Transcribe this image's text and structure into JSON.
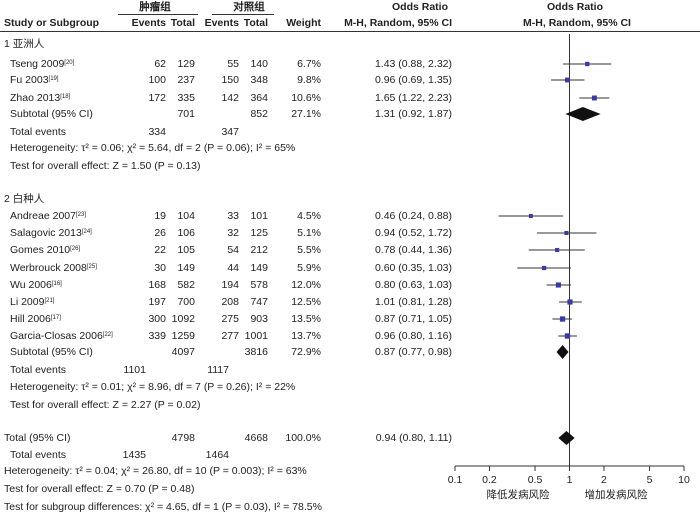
{
  "header": {
    "group1": "肿瘤组",
    "group2": "对照组",
    "or_top": "Odds Ratio",
    "or_top2": "Odds Ratio",
    "study": "Study or Subgroup",
    "events1": "Events",
    "total1": "Total",
    "events2": "Events",
    "total2": "Total",
    "weight": "Weight",
    "method": "M-H, Random, 95% CI",
    "method2": "M-H, Random, 95% CI"
  },
  "subgroups": [
    {
      "title": "1 亚洲人",
      "studies": [
        {
          "name": "Tseng 2009",
          "ref": "[20]",
          "e1": "62",
          "t1": "129",
          "e2": "55",
          "t2": "140",
          "w": "6.7%",
          "ci": "1.43 (0.88, 2.32)"
        },
        {
          "name": "Fu 2003",
          "ref": "[19]",
          "e1": "100",
          "t1": "237",
          "e2": "150",
          "t2": "348",
          "w": "9.8%",
          "ci": "0.96 (0.69, 1.35)"
        },
        {
          "name": "Zhao 2013",
          "ref": "[18]",
          "e1": "172",
          "t1": "335",
          "e2": "142",
          "t2": "364",
          "w": "10.6%",
          "ci": "1.65 (1.22, 2.23)"
        }
      ],
      "subtotal": {
        "label": "Subtotal (95% CI)",
        "t1": "701",
        "t2": "852",
        "w": "27.1%",
        "ci": "1.31 (0.92, 1.87)"
      },
      "total_events": {
        "label": "Total events",
        "e1": "334",
        "e2": "347"
      },
      "heterogeneity": "Heterogeneity: τ² = 0.06; χ² = 5.64, df = 2 (P = 0.06); I² = 65%",
      "overall": "Test for overall effect: Z = 1.50 (P = 0.13)"
    },
    {
      "title": "2 白种人",
      "studies": [
        {
          "name": "Andreae 2007",
          "ref": "[23]",
          "e1": "19",
          "t1": "104",
          "e2": "33",
          "t2": "101",
          "w": "4.5%",
          "ci": "0.46 (0.24, 0.88)"
        },
        {
          "name": "Salagovic 2013",
          "ref": "[24]",
          "e1": "26",
          "t1": "106",
          "e2": "32",
          "t2": "125",
          "w": "5.1%",
          "ci": "0.94 (0.52, 1.72)"
        },
        {
          "name": "Gomes 2010",
          "ref": "[26]",
          "e1": "22",
          "t1": "105",
          "e2": "54",
          "t2": "212",
          "w": "5.5%",
          "ci": "0.78 (0.44, 1.36)"
        },
        {
          "name": "Werbrouck 2008",
          "ref": "[25]",
          "e1": "30",
          "t1": "149",
          "e2": "44",
          "t2": "149",
          "w": "5.9%",
          "ci": "0.60 (0.35, 1.03)"
        },
        {
          "name": "Wu 2006",
          "ref": "[16]",
          "e1": "168",
          "t1": "582",
          "e2": "194",
          "t2": "578",
          "w": "12.0%",
          "ci": "0.80 (0.63, 1.03)"
        },
        {
          "name": "Li 2009",
          "ref": "[21]",
          "e1": "197",
          "t1": "700",
          "e2": "208",
          "t2": "747",
          "w": "12.5%",
          "ci": "1.01 (0.81, 1.28)"
        },
        {
          "name": "Hill 2006",
          "ref": "[17]",
          "e1": "300",
          "t1": "1092",
          "e2": "275",
          "t2": "903",
          "w": "13.5%",
          "ci": "0.87 (0.71, 1.05)"
        },
        {
          "name": "Garcia-Closas 2006",
          "ref": "[22]",
          "e1": "339",
          "t1": "1259",
          "e2": "277",
          "t2": "1001",
          "w": "13.7%",
          "ci": "0.96 (0.80, 1.16)"
        }
      ],
      "subtotal": {
        "label": "Subtotal (95% CI)",
        "t1": "4097",
        "t2": "3816",
        "w": "72.9%",
        "ci": "0.87 (0.77, 0.98)"
      },
      "total_events": {
        "label": "Total events",
        "e1": "1101",
        "e2": "1117"
      },
      "heterogeneity": "Heterogeneity: τ² = 0.01; χ² = 8.96, df = 7 (P = 0.26); I² = 22%",
      "overall": "Test for overall effect: Z = 2.27 (P = 0.02)"
    }
  ],
  "total": {
    "label": "Total (95% CI)",
    "t1": "4798",
    "t2": "4668",
    "w": "100.0%",
    "ci": "0.94 (0.80, 1.11)"
  },
  "total_events": {
    "label": "Total events",
    "e1": "1435",
    "e2": "1464"
  },
  "footer": {
    "heterogeneity": "Heterogeneity: τ² = 0.04; χ² = 26.80, df = 10 (P = 0.003); I² = 63%",
    "overall": "Test for overall effect: Z = 0.70 (P = 0.48)",
    "subgroup_diff": "Test for subgroup differences: χ² = 4.65, df = 1 (P = 0.03), I² = 78.5%"
  },
  "axis": {
    "ticks": [
      "0.1",
      "0.2",
      "0.5",
      "1",
      "2",
      "5",
      "10"
    ],
    "left_label": "降低发病风险",
    "right_label": "增加发病风险"
  },
  "colors": {
    "marker": "#3a3aa0",
    "diamond": "#111111",
    "line": "#333333"
  },
  "chart_data": {
    "type": "forest",
    "x_scale": "log",
    "xlim": [
      0.1,
      10
    ],
    "null_line": 1,
    "studies": [
      {
        "name": "Tseng 2009",
        "or": 1.43,
        "lo": 0.88,
        "hi": 2.32,
        "weight": 6.7
      },
      {
        "name": "Fu 2003",
        "or": 0.96,
        "lo": 0.69,
        "hi": 1.35,
        "weight": 9.8
      },
      {
        "name": "Zhao 2013",
        "or": 1.65,
        "lo": 1.22,
        "hi": 2.23,
        "weight": 10.6
      },
      {
        "name": "Andreae 2007",
        "or": 0.46,
        "lo": 0.24,
        "hi": 0.88,
        "weight": 4.5
      },
      {
        "name": "Salagovic 2013",
        "or": 0.94,
        "lo": 0.52,
        "hi": 1.72,
        "weight": 5.1
      },
      {
        "name": "Gomes 2010",
        "or": 0.78,
        "lo": 0.44,
        "hi": 1.36,
        "weight": 5.5
      },
      {
        "name": "Werbrouck 2008",
        "or": 0.6,
        "lo": 0.35,
        "hi": 1.03,
        "weight": 5.9
      },
      {
        "name": "Wu 2006",
        "or": 0.8,
        "lo": 0.63,
        "hi": 1.03,
        "weight": 12.0
      },
      {
        "name": "Li 2009",
        "or": 1.01,
        "lo": 0.81,
        "hi": 1.28,
        "weight": 12.5
      },
      {
        "name": "Hill 2006",
        "or": 0.87,
        "lo": 0.71,
        "hi": 1.05,
        "weight": 13.5
      },
      {
        "name": "Garcia-Closas 2006",
        "or": 0.96,
        "lo": 0.8,
        "hi": 1.16,
        "weight": 13.7
      }
    ],
    "summaries": [
      {
        "name": "Subtotal 亚洲人",
        "or": 1.31,
        "lo": 0.92,
        "hi": 1.87
      },
      {
        "name": "Subtotal 白种人",
        "or": 0.87,
        "lo": 0.77,
        "hi": 0.98
      },
      {
        "name": "Total",
        "or": 0.94,
        "lo": 0.8,
        "hi": 1.11
      }
    ]
  }
}
